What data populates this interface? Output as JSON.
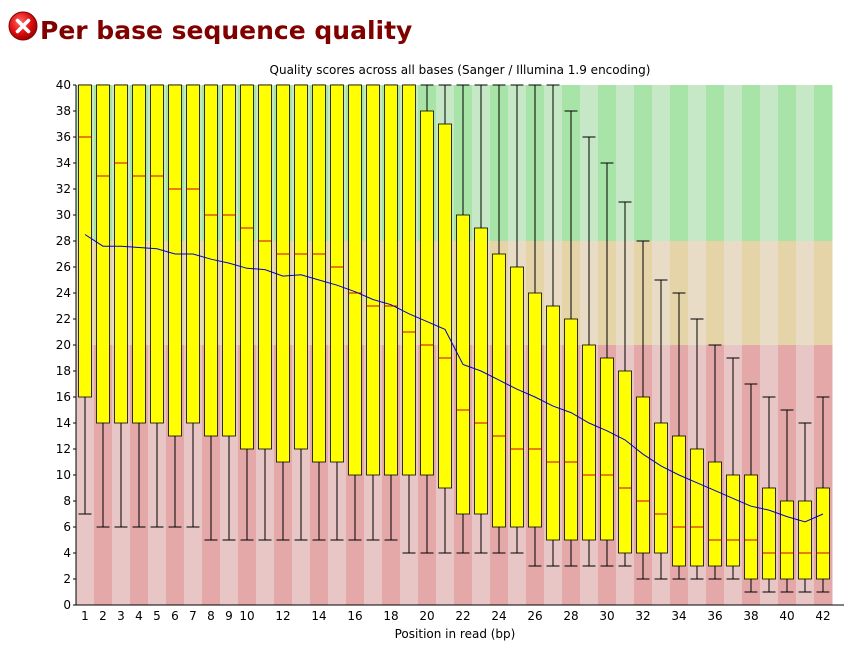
{
  "header": {
    "status": "fail",
    "title": "Per base sequence quality"
  },
  "chart_data": {
    "type": "boxplot",
    "title": "Quality scores across all bases (Sanger / Illumina 1.9 encoding)",
    "xlabel": "Position in read (bp)",
    "ylabel": "",
    "ylim": [
      0,
      40
    ],
    "yticks": [
      0,
      2,
      4,
      6,
      8,
      10,
      12,
      14,
      16,
      18,
      20,
      22,
      24,
      26,
      28,
      30,
      32,
      34,
      36,
      38,
      40
    ],
    "xtick_labels": [
      "1",
      "2",
      "3",
      "4",
      "5",
      "6",
      "7",
      "8",
      "9",
      "10",
      "12",
      "14",
      "16",
      "18",
      "20",
      "22",
      "24",
      "26",
      "28",
      "30",
      "32",
      "34",
      "36",
      "38",
      "40",
      "42"
    ],
    "quality_bands": [
      {
        "name": "good",
        "from": 28,
        "to": 40,
        "color_light": "#c6e8c6",
        "color_dark": "#a8e4a8"
      },
      {
        "name": "reasonable",
        "from": 20,
        "to": 28,
        "color_light": "#e8dcc6",
        "color_dark": "#e4d4a8"
      },
      {
        "name": "poor",
        "from": 0,
        "to": 20,
        "color_light": "#e8c6c6",
        "color_dark": "#e4a8a8"
      }
    ],
    "colors": {
      "box": "#ffff00",
      "median": "#cc0000",
      "mean": "#0000cc",
      "whisker": "#000000"
    },
    "positions": [
      {
        "label": "1",
        "low": 7,
        "q1": 16,
        "median": 36,
        "q3": 40,
        "high": 40,
        "mean": 28.5
      },
      {
        "label": "2",
        "low": 6,
        "q1": 14,
        "median": 33,
        "q3": 40,
        "high": 40,
        "mean": 27.6
      },
      {
        "label": "3",
        "low": 6,
        "q1": 14,
        "median": 34,
        "q3": 40,
        "high": 40,
        "mean": 27.6
      },
      {
        "label": "4",
        "low": 6,
        "q1": 14,
        "median": 33,
        "q3": 40,
        "high": 40,
        "mean": 27.5
      },
      {
        "label": "5",
        "low": 6,
        "q1": 14,
        "median": 33,
        "q3": 40,
        "high": 40,
        "mean": 27.4
      },
      {
        "label": "6",
        "low": 6,
        "q1": 13,
        "median": 32,
        "q3": 40,
        "high": 40,
        "mean": 27.0
      },
      {
        "label": "7",
        "low": 6,
        "q1": 14,
        "median": 32,
        "q3": 40,
        "high": 40,
        "mean": 27.0
      },
      {
        "label": "8",
        "low": 5,
        "q1": 13,
        "median": 30,
        "q3": 40,
        "high": 40,
        "mean": 26.6
      },
      {
        "label": "9",
        "low": 5,
        "q1": 13,
        "median": 30,
        "q3": 40,
        "high": 40,
        "mean": 26.3
      },
      {
        "label": "10",
        "low": 5,
        "q1": 12,
        "median": 29,
        "q3": 40,
        "high": 40,
        "mean": 25.9
      },
      {
        "label": "11",
        "low": 5,
        "q1": 12,
        "median": 28,
        "q3": 40,
        "high": 40,
        "mean": 25.8
      },
      {
        "label": "12",
        "low": 5,
        "q1": 11,
        "median": 27,
        "q3": 40,
        "high": 40,
        "mean": 25.3
      },
      {
        "label": "13",
        "low": 5,
        "q1": 12,
        "median": 27,
        "q3": 40,
        "high": 40,
        "mean": 25.4
      },
      {
        "label": "14",
        "low": 5,
        "q1": 11,
        "median": 27,
        "q3": 40,
        "high": 40,
        "mean": 25.0
      },
      {
        "label": "15",
        "low": 5,
        "q1": 11,
        "median": 26,
        "q3": 40,
        "high": 40,
        "mean": 24.6
      },
      {
        "label": "16",
        "low": 5,
        "q1": 10,
        "median": 24,
        "q3": 40,
        "high": 40,
        "mean": 24.1
      },
      {
        "label": "17",
        "low": 5,
        "q1": 10,
        "median": 23,
        "q3": 40,
        "high": 40,
        "mean": 23.5
      },
      {
        "label": "18",
        "low": 5,
        "q1": 10,
        "median": 23,
        "q3": 40,
        "high": 40,
        "mean": 23.1
      },
      {
        "label": "19",
        "low": 4,
        "q1": 10,
        "median": 21,
        "q3": 40,
        "high": 40,
        "mean": 22.4
      },
      {
        "label": "20",
        "low": 4,
        "q1": 10,
        "median": 20,
        "q3": 38,
        "high": 40,
        "mean": 21.8
      },
      {
        "label": "21",
        "low": 4,
        "q1": 9,
        "median": 19,
        "q3": 37,
        "high": 40,
        "mean": 21.2
      },
      {
        "label": "22",
        "low": 4,
        "q1": 7,
        "median": 15,
        "q3": 30,
        "high": 40,
        "mean": 18.5
      },
      {
        "label": "23",
        "low": 4,
        "q1": 7,
        "median": 14,
        "q3": 29,
        "high": 40,
        "mean": 18.0
      },
      {
        "label": "24",
        "low": 4,
        "q1": 6,
        "median": 13,
        "q3": 27,
        "high": 40,
        "mean": 17.3
      },
      {
        "label": "25",
        "low": 4,
        "q1": 6,
        "median": 12,
        "q3": 26,
        "high": 40,
        "mean": 16.6
      },
      {
        "label": "26",
        "low": 3,
        "q1": 6,
        "median": 12,
        "q3": 24,
        "high": 40,
        "mean": 16.0
      },
      {
        "label": "27",
        "low": 3,
        "q1": 5,
        "median": 11,
        "q3": 23,
        "high": 40,
        "mean": 15.3
      },
      {
        "label": "28",
        "low": 3,
        "q1": 5,
        "median": 11,
        "q3": 22,
        "high": 38,
        "mean": 14.8
      },
      {
        "label": "29",
        "low": 3,
        "q1": 5,
        "median": 10,
        "q3": 20,
        "high": 36,
        "mean": 14.0
      },
      {
        "label": "30",
        "low": 3,
        "q1": 5,
        "median": 10,
        "q3": 19,
        "high": 34,
        "mean": 13.4
      },
      {
        "label": "31",
        "low": 3,
        "q1": 4,
        "median": 9,
        "q3": 18,
        "high": 31,
        "mean": 12.7
      },
      {
        "label": "32",
        "low": 2,
        "q1": 4,
        "median": 8,
        "q3": 16,
        "high": 28,
        "mean": 11.6
      },
      {
        "label": "33",
        "low": 2,
        "q1": 4,
        "median": 7,
        "q3": 14,
        "high": 25,
        "mean": 10.7
      },
      {
        "label": "34",
        "low": 2,
        "q1": 3,
        "median": 6,
        "q3": 13,
        "high": 24,
        "mean": 10.0
      },
      {
        "label": "35",
        "low": 2,
        "q1": 3,
        "median": 6,
        "q3": 12,
        "high": 22,
        "mean": 9.4
      },
      {
        "label": "36",
        "low": 2,
        "q1": 3,
        "median": 5,
        "q3": 11,
        "high": 20,
        "mean": 8.8
      },
      {
        "label": "37",
        "low": 2,
        "q1": 3,
        "median": 5,
        "q3": 10,
        "high": 19,
        "mean": 8.2
      },
      {
        "label": "38",
        "low": 1,
        "q1": 2,
        "median": 5,
        "q3": 10,
        "high": 17,
        "mean": 7.6
      },
      {
        "label": "39",
        "low": 1,
        "q1": 2,
        "median": 4,
        "q3": 9,
        "high": 16,
        "mean": 7.3
      },
      {
        "label": "40",
        "low": 1,
        "q1": 2,
        "median": 4,
        "q3": 8,
        "high": 15,
        "mean": 6.8
      },
      {
        "label": "41",
        "low": 1,
        "q1": 2,
        "median": 4,
        "q3": 8,
        "high": 14,
        "mean": 6.4
      },
      {
        "label": "42",
        "low": 1,
        "q1": 2,
        "median": 4,
        "q3": 9,
        "high": 16,
        "mean": 7.0
      }
    ]
  }
}
